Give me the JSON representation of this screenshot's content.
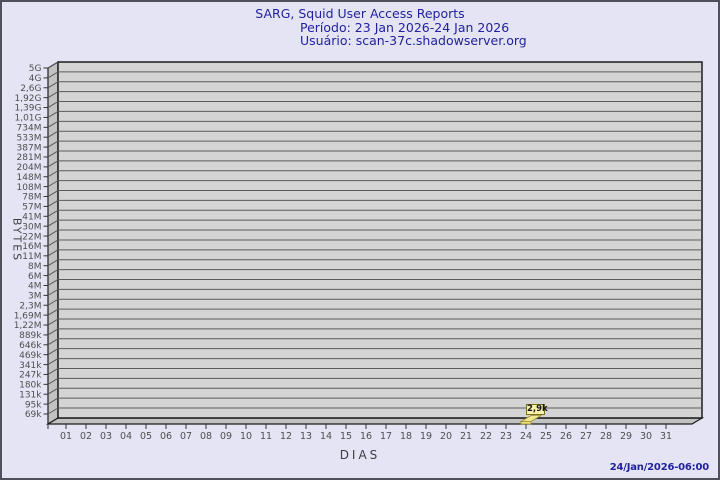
{
  "header": {
    "title": "SARG, Squid User Access Reports",
    "period": "Período: 23 Jan 2026-24 Jan 2026",
    "user": "Usuário: scan-37c.shadowserver.org"
  },
  "axes": {
    "y_title": "BYTES",
    "x_title": "DIAS"
  },
  "footer": {
    "timestamp": "24/Jan/2026-06:00"
  },
  "colors": {
    "background": "#e4e4f4",
    "page_border": "#50505a",
    "plot_bg": "#d4d4d4",
    "wall": "#c2c2c2",
    "grid": "#5a5a5a",
    "frame_edge": "#1c1c1c",
    "tick_text": "#4f4f4f",
    "title_text": "#22229e",
    "bar_fill": "#f0e68c",
    "bar_front": "#ecdf82",
    "bar_edge": "#9c8f35",
    "annotation_bg": "#f7f0ad",
    "annotation_border": "#7c711b"
  },
  "chart_data": {
    "type": "bar",
    "style": "3d",
    "title": "SARG, Squid User Access Reports",
    "subtitle_period": "Período: 23 Jan 2026-24 Jan 2026",
    "subtitle_user": "Usuário: scan-37c.shadowserver.org",
    "xlabel": "DIAS",
    "ylabel": "BYTES",
    "y_scale": "log",
    "grid": "horizontal",
    "legend_position": "none",
    "x_categories": [
      "01",
      "02",
      "03",
      "04",
      "05",
      "06",
      "07",
      "08",
      "09",
      "10",
      "11",
      "12",
      "13",
      "14",
      "15",
      "16",
      "17",
      "18",
      "19",
      "20",
      "21",
      "22",
      "23",
      "24",
      "25",
      "26",
      "27",
      "28",
      "29",
      "30",
      "31"
    ],
    "y_tick_labels": [
      "5G",
      "4G",
      "2,6G",
      "1,92G",
      "1,39G",
      "1,01G",
      "734M",
      "533M",
      "387M",
      "281M",
      "204M",
      "148M",
      "108M",
      "78M",
      "57M",
      "41M",
      "30M",
      "22M",
      "16M",
      "11M",
      "8M",
      "6M",
      "4M",
      "3M",
      "2,3M",
      "1,69M",
      "1,22M",
      "889k",
      "646k",
      "469k",
      "341k",
      "247k",
      "180k",
      "131k",
      "95k",
      "69k"
    ],
    "y_axis_max_label": "5G",
    "y_axis_min_label": "69k",
    "bars": [
      {
        "day": "24",
        "label": "2,9k",
        "value_bytes": 2900
      }
    ]
  }
}
